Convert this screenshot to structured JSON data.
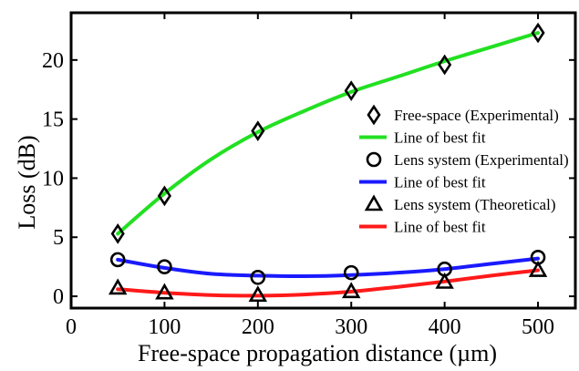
{
  "chart_data": {
    "type": "line",
    "title": "",
    "xlabel": "Free-space propagation distance (µm)",
    "ylabel": "Loss (dB)",
    "xlim": [
      0,
      540
    ],
    "ylim": [
      -1,
      24
    ],
    "x_ticks": [
      0,
      100,
      200,
      300,
      400,
      500
    ],
    "y_ticks": [
      0,
      5,
      10,
      15,
      20
    ],
    "grid": false,
    "legend_position": "center-right",
    "series": [
      {
        "name": "Free-space (Experimental)",
        "kind": "markers",
        "marker": "diamond",
        "color": "#000000",
        "x": [
          50,
          100,
          200,
          300,
          400,
          500
        ],
        "y": [
          5.3,
          8.5,
          14.0,
          17.4,
          19.6,
          22.3
        ]
      },
      {
        "name": "Line of best fit",
        "kind": "line",
        "color": "#22e022",
        "x": [
          50,
          100,
          150,
          200,
          250,
          300,
          350,
          400,
          450,
          500
        ],
        "y": [
          5.3,
          8.7,
          11.6,
          13.9,
          15.7,
          17.3,
          18.6,
          19.9,
          21.1,
          22.3
        ]
      },
      {
        "name": "Lens system (Experimental)",
        "kind": "markers",
        "marker": "circle",
        "color": "#000000",
        "x": [
          50,
          100,
          200,
          300,
          400,
          500
        ],
        "y": [
          3.1,
          2.5,
          1.6,
          2.0,
          2.3,
          3.3
        ]
      },
      {
        "name": "Line of best fit",
        "kind": "line",
        "color": "#1a1aff",
        "x": [
          50,
          100,
          150,
          200,
          250,
          300,
          350,
          400,
          450,
          500
        ],
        "y": [
          3.1,
          2.4,
          1.9,
          1.75,
          1.7,
          1.8,
          2.0,
          2.3,
          2.75,
          3.2
        ]
      },
      {
        "name": "Lens system (Theoretical)",
        "kind": "markers",
        "marker": "triangle",
        "color": "#000000",
        "x": [
          50,
          100,
          200,
          300,
          400,
          500
        ],
        "y": [
          0.7,
          0.3,
          0.1,
          0.4,
          1.2,
          2.2
        ]
      },
      {
        "name": "Line of best fit",
        "kind": "line",
        "color": "#ff1a1a",
        "x": [
          50,
          100,
          150,
          200,
          250,
          300,
          350,
          400,
          450,
          500
        ],
        "y": [
          0.6,
          0.3,
          0.1,
          0.05,
          0.15,
          0.4,
          0.8,
          1.25,
          1.75,
          2.2
        ]
      }
    ]
  }
}
